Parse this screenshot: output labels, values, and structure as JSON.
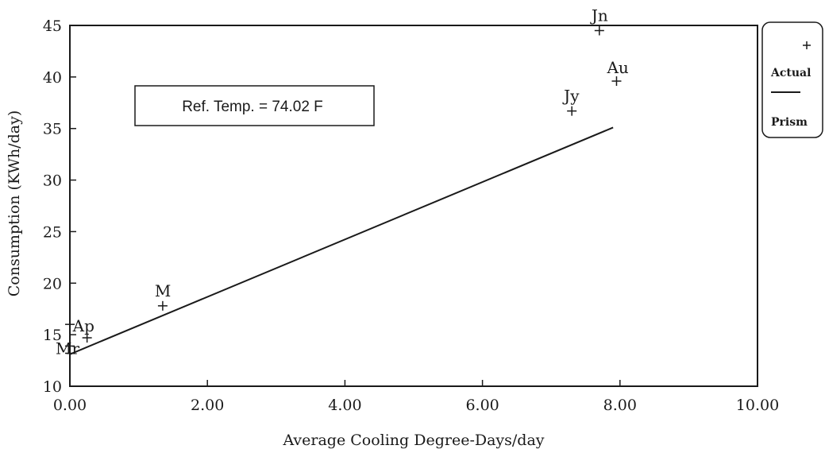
{
  "chart_data": {
    "type": "scatter",
    "xlabel": "Average Cooling Degree-Days/day",
    "ylabel": "Consumption (KWh/day)",
    "xlim": [
      0,
      10
    ],
    "ylim": [
      10,
      45
    ],
    "x_ticks": [
      "0.00",
      "2.00",
      "4.00",
      "6.00",
      "8.00",
      "10.00"
    ],
    "y_ticks": [
      "10",
      "15",
      "20",
      "25",
      "30",
      "35",
      "40",
      "45"
    ],
    "grid": false,
    "legend_position": "right",
    "annotation": "Ref. Temp. = 74.02 F",
    "series": [
      {
        "name": "Actual",
        "marker": "+",
        "points": [
          {
            "x": 0.0,
            "y": 16.0,
            "label": ""
          },
          {
            "x": 0.0,
            "y": 13.9,
            "label": "Mr"
          },
          {
            "x": 0.0,
            "y": 13.2,
            "label": ""
          },
          {
            "x": 0.25,
            "y": 14.7,
            "label": "Ap"
          },
          {
            "x": 1.35,
            "y": 17.8,
            "label": "M"
          },
          {
            "x": 7.7,
            "y": 44.5,
            "label": "Jn"
          },
          {
            "x": 7.3,
            "y": 36.7,
            "label": "Jy"
          },
          {
            "x": 7.95,
            "y": 39.6,
            "label": "Au"
          }
        ]
      },
      {
        "name": "Prism",
        "style": "line",
        "points": [
          {
            "x": 0.0,
            "y": 13.1
          },
          {
            "x": 7.9,
            "y": 35.1
          }
        ]
      }
    ]
  },
  "legend": {
    "actual_label": "Actual",
    "prism_label": "Prism"
  }
}
